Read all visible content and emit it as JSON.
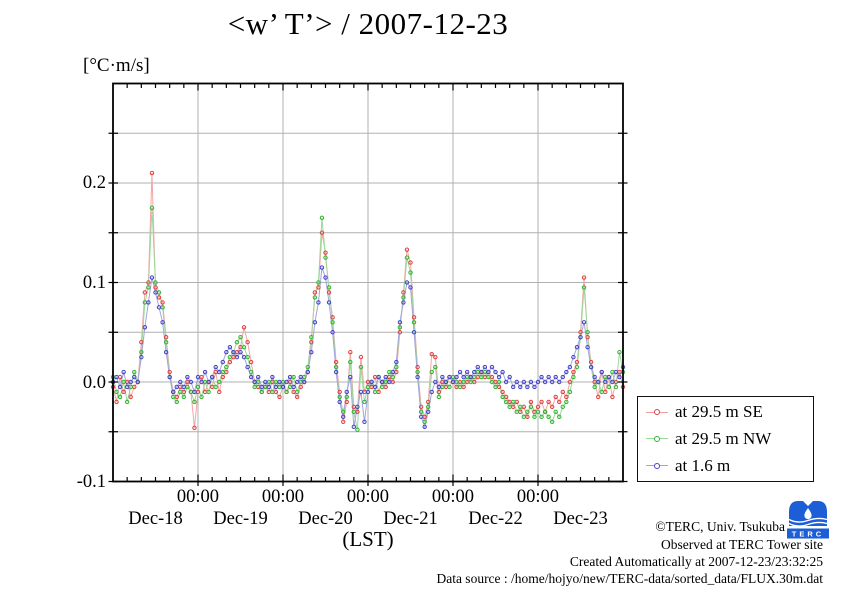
{
  "title": "<w’ T’> / 2007-12-23",
  "unit_label": "[°C·m/s]",
  "xlabel": "(LST)",
  "axes": {
    "y_tick_labels": [
      "0.2",
      "0.1",
      "0.0",
      "-0.1"
    ],
    "x_time_labels": [
      "00:00",
      "00:00",
      "00:00",
      "00:00",
      "00:00"
    ],
    "x_day_labels": [
      "Dec-18",
      "Dec-19",
      "Dec-20",
      "Dec-21",
      "Dec-22",
      "Dec-23"
    ]
  },
  "legend": {
    "items": [
      {
        "label": "at 29.5 m SE",
        "color": "#e04040"
      },
      {
        "label": "at 29.5 m NW",
        "color": "#2fb52f"
      },
      {
        "label": "at 1.6 m",
        "color": "#4343c8"
      }
    ]
  },
  "footer": {
    "copyright": "©TERC, Univ. Tsukuba",
    "observed": "Observed at TERC Tower site",
    "created": "Created Automatically at 2007-12-23/23:32:25",
    "datasource": "Data source : /home/hojyo/new/TERC-data/sorted_data/FLUX.30m.dat"
  },
  "logo": {
    "text": "TERC",
    "color": "#1b5ed6"
  },
  "colors": {
    "grid": "#b0b0b0",
    "frame": "#000000",
    "tick": "#000000"
  },
  "chart_data": {
    "type": "line",
    "title": "<w’ T’> / 2007-12-23",
    "ylabel": "[°C·m/s]",
    "xlabel": "(LST)",
    "ylim": [
      -0.1,
      0.3
    ],
    "y_tick_values": [
      0.2,
      0.1,
      0.0,
      -0.1
    ],
    "y_grid_step": 0.05,
    "grid": true,
    "legend_position": "right-bottom-outside",
    "x_unit": "hours since Dec-18 00:00 LST",
    "x_hours": {
      "start": 0,
      "step": 1,
      "count": 145
    },
    "x_major_tick_hours": 24,
    "x_minor_tick_hours": 4,
    "x_day_categories": [
      "Dec-18",
      "Dec-19",
      "Dec-20",
      "Dec-21",
      "Dec-22",
      "Dec-23"
    ],
    "series": [
      {
        "name": "at 29.5 m SE",
        "marker_color": "#e04040",
        "line_color": "#f2a6a6",
        "values": [
          -0.005,
          -0.02,
          0.005,
          -0.01,
          0,
          -0.015,
          -0.005,
          0,
          0.04,
          0.09,
          0.1,
          0.21,
          0.095,
          0.085,
          0.08,
          0.045,
          0.01,
          -0.01,
          -0.015,
          -0.005,
          -0.01,
          0,
          -0.01,
          -0.046,
          -0.01,
          0.005,
          -0.01,
          0,
          -0.005,
          0.01,
          -0.01,
          0.005,
          0.01,
          0.02,
          0.025,
          0.03,
          0.035,
          0.055,
          0.04,
          0.02,
          0,
          -0.005,
          -0.01,
          -0.005,
          -0.01,
          0,
          -0.01,
          -0.015,
          -0.005,
          -0.01,
          0,
          -0.01,
          -0.015,
          -0.005,
          0,
          0.01,
          0.04,
          0.09,
          0.095,
          0.15,
          0.13,
          0.09,
          0.065,
          0.02,
          -0.01,
          -0.04,
          -0.02,
          0.03,
          -0.025,
          -0.03,
          0.025,
          -0.01,
          0,
          -0.005,
          0.005,
          -0.01,
          0,
          -0.005,
          0.005,
          0,
          0.01,
          0.05,
          0.09,
          0.133,
          0.12,
          0.065,
          0.015,
          -0.025,
          -0.035,
          -0.02,
          0.028,
          0.025,
          -0.01,
          0,
          -0.005,
          0.005,
          0,
          -0.005,
          0,
          -0.005,
          0,
          0.005,
          0,
          0.005,
          0.01,
          0.005,
          0.01,
          0.005,
          0,
          -0.005,
          -0.01,
          -0.015,
          -0.02,
          -0.025,
          -0.02,
          -0.03,
          -0.025,
          -0.035,
          -0.02,
          -0.03,
          -0.025,
          -0.02,
          -0.03,
          -0.02,
          -0.025,
          -0.015,
          -0.02,
          -0.01,
          -0.015,
          0,
          0.01,
          0.02,
          0.05,
          0.105,
          0.045,
          0.02,
          0,
          -0.015,
          0.01,
          -0.01,
          0.005,
          -0.015,
          0,
          0.01,
          -0.005
        ]
      },
      {
        "name": "at 29.5 m NW",
        "marker_color": "#2fb52f",
        "line_color": "#9cd89c",
        "values": [
          0.005,
          -0.01,
          -0.015,
          0,
          -0.02,
          -0.005,
          0.01,
          0,
          0.03,
          0.08,
          0.095,
          0.175,
          0.1,
          0.09,
          0.075,
          0.04,
          0.005,
          -0.015,
          -0.02,
          -0.01,
          -0.015,
          -0.005,
          -0.01,
          -0.02,
          -0.005,
          -0.015,
          0,
          -0.01,
          0.005,
          -0.005,
          0,
          0.01,
          0.015,
          0.025,
          0.03,
          0.04,
          0.045,
          0.035,
          0.025,
          0.01,
          -0.005,
          0,
          -0.01,
          -0.005,
          0,
          -0.01,
          0,
          -0.005,
          0,
          -0.01,
          -0.005,
          0.005,
          -0.01,
          0,
          0.005,
          0.015,
          0.045,
          0.085,
          0.1,
          0.165,
          0.125,
          0.095,
          0.06,
          0.015,
          -0.015,
          -0.03,
          -0.015,
          0.02,
          -0.03,
          -0.048,
          0.015,
          -0.02,
          -0.005,
          0,
          -0.01,
          0.005,
          -0.005,
          0,
          0.01,
          0.005,
          0.015,
          0.055,
          0.085,
          0.125,
          0.11,
          0.06,
          0.01,
          -0.03,
          -0.04,
          -0.025,
          0.01,
          0.015,
          -0.015,
          -0.005,
          0,
          -0.005,
          0.005,
          0,
          -0.005,
          0,
          0.005,
          0,
          0.005,
          0.01,
          0.005,
          0.01,
          0.005,
          0,
          -0.005,
          0,
          -0.015,
          -0.02,
          -0.025,
          -0.02,
          -0.03,
          -0.025,
          -0.035,
          -0.03,
          -0.025,
          -0.035,
          -0.03,
          -0.035,
          -0.03,
          -0.035,
          -0.04,
          -0.03,
          -0.035,
          -0.025,
          -0.02,
          -0.01,
          0.005,
          0.015,
          0.045,
          0.095,
          0.05,
          0.015,
          -0.005,
          0,
          -0.01,
          0.005,
          -0.005,
          0.01,
          -0.005,
          0.03,
          0.01
        ]
      },
      {
        "name": "at 1.6 m",
        "marker_color": "#4343c8",
        "line_color": "#a3a3e0",
        "values": [
          0,
          0.005,
          -0.005,
          0.01,
          -0.005,
          0,
          0.005,
          0,
          0.025,
          0.055,
          0.08,
          0.105,
          0.09,
          0.075,
          0.06,
          0.03,
          0.005,
          -0.01,
          -0.005,
          0,
          -0.005,
          0.005,
          0,
          -0.01,
          0.005,
          0,
          0.01,
          0,
          0.005,
          0.015,
          0.01,
          0.02,
          0.03,
          0.035,
          0.03,
          0.025,
          0.03,
          0.025,
          0.015,
          0.005,
          0,
          0.005,
          -0.005,
          0,
          -0.005,
          0.005,
          -0.005,
          0,
          -0.005,
          0,
          0.005,
          -0.005,
          0,
          0.005,
          0,
          0.01,
          0.03,
          0.06,
          0.08,
          0.115,
          0.105,
          0.08,
          0.05,
          0.01,
          -0.02,
          -0.035,
          -0.01,
          0.005,
          -0.045,
          -0.025,
          -0.01,
          -0.04,
          -0.01,
          0,
          -0.005,
          0.005,
          0,
          0.005,
          0,
          0.01,
          0.02,
          0.06,
          0.08,
          0.1,
          0.095,
          0.05,
          0.005,
          -0.035,
          -0.045,
          -0.03,
          -0.01,
          0,
          -0.005,
          0.005,
          0,
          0.005,
          0,
          0.005,
          0.01,
          0.005,
          0.01,
          0.005,
          0.01,
          0.015,
          0.01,
          0.015,
          0.01,
          0.015,
          0.01,
          0.005,
          0.01,
          0,
          0.005,
          -0.005,
          0,
          -0.005,
          0,
          -0.005,
          0,
          -0.005,
          0,
          0.005,
          0,
          0.005,
          0,
          0.005,
          0,
          0.005,
          0.01,
          0.015,
          0.025,
          0.035,
          0.045,
          0.06,
          0.035,
          0.015,
          0.005,
          0,
          0.01,
          0,
          0.005,
          0,
          0.01,
          0.005,
          0.015
        ]
      }
    ]
  }
}
